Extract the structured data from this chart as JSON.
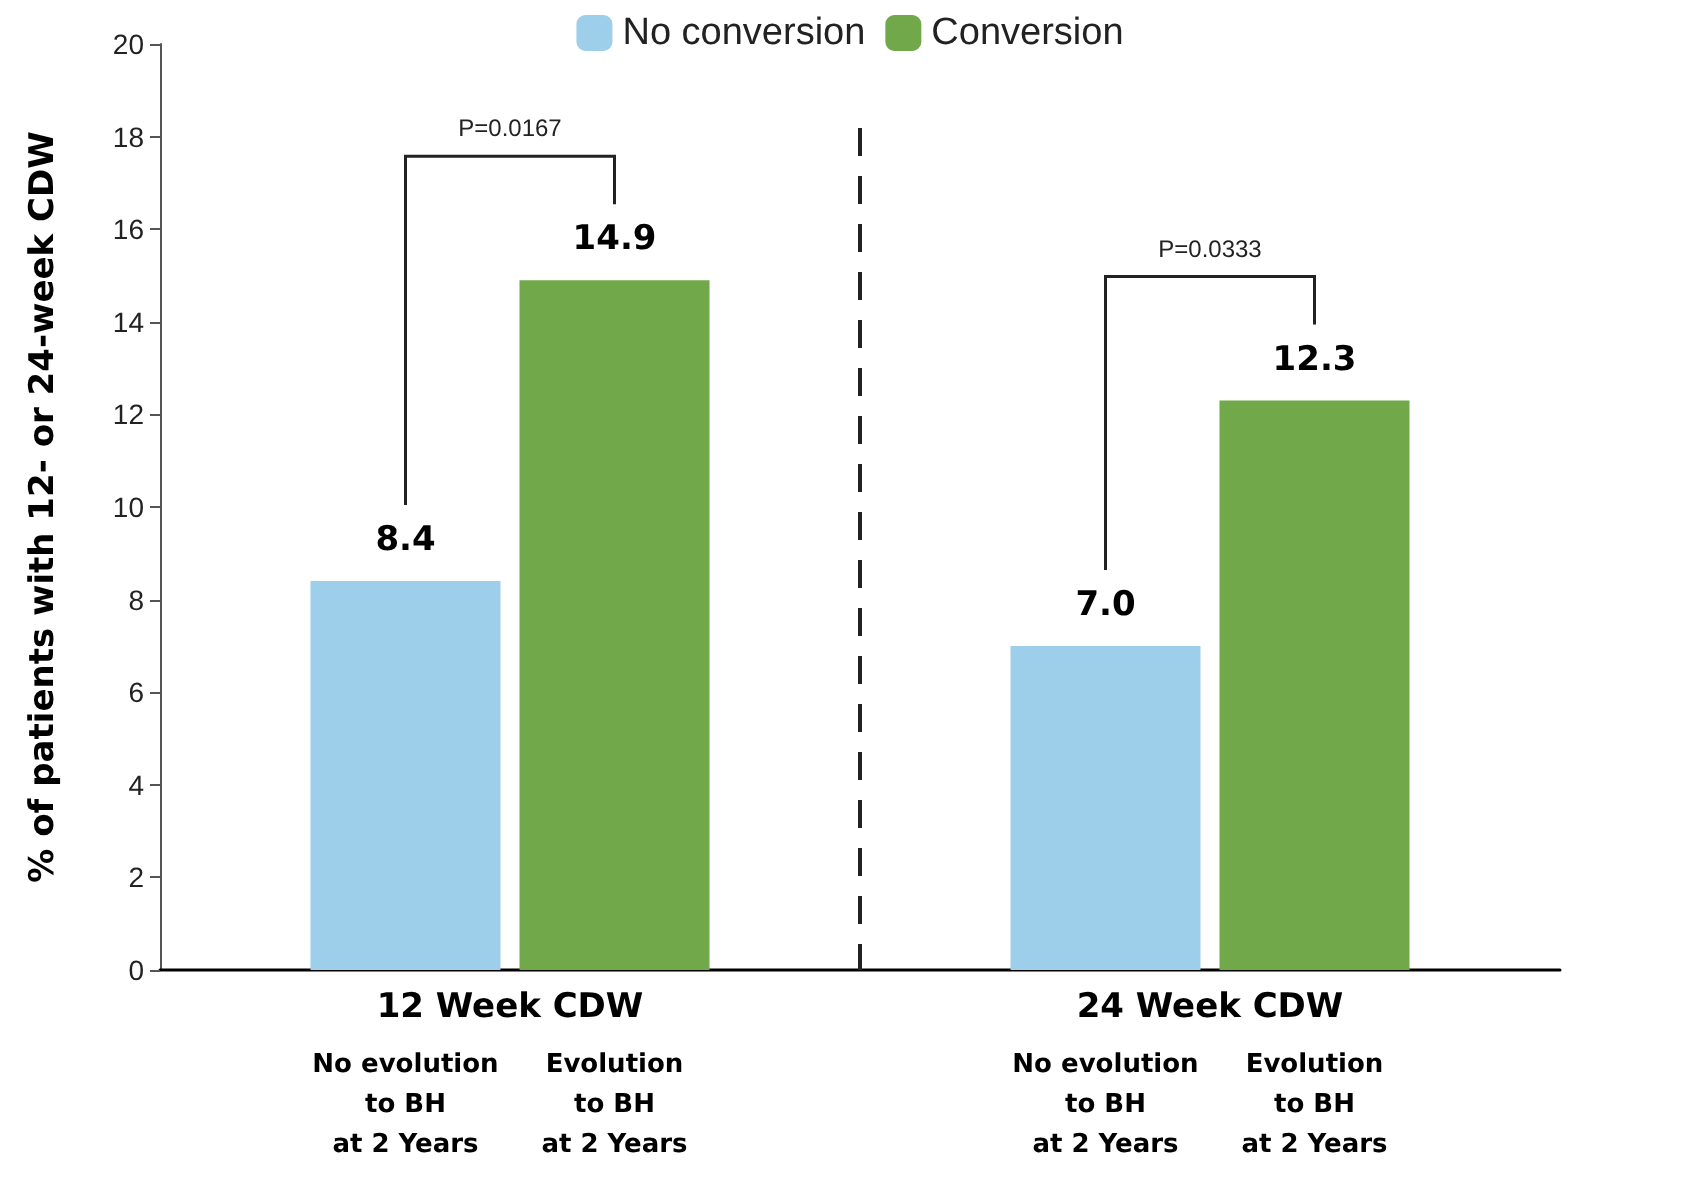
{
  "chart_data": {
    "type": "bar",
    "ylabel": "% of patients with 12- or 24-week CDW",
    "categories": [
      "12 Week CDW",
      "24 Week CDW"
    ],
    "series": [
      {
        "name": "No conversion",
        "color": "#9dcfea",
        "values": [
          8.4,
          7.0
        ],
        "value_labels": [
          "8.4",
          "7.0"
        ]
      },
      {
        "name": "Conversion",
        "color": "#70a84a",
        "values": [
          14.9,
          12.3
        ],
        "value_labels": [
          "14.9",
          "12.3"
        ]
      }
    ],
    "ylim": [
      0,
      20
    ],
    "yticks": [
      0,
      2,
      4,
      6,
      8,
      10,
      12,
      14,
      16,
      18,
      20
    ],
    "grid": false,
    "legend": "top",
    "annotations": [
      "P=0.0167",
      "P=0.0333",
      "No evolution\nto BH\nat 2 Years",
      "Evolution\nto BH\nat 2 Years",
      "No evolution\nto BH\nat 2 Years",
      "Evolution\nto BH\nat 2 Years"
    ]
  }
}
